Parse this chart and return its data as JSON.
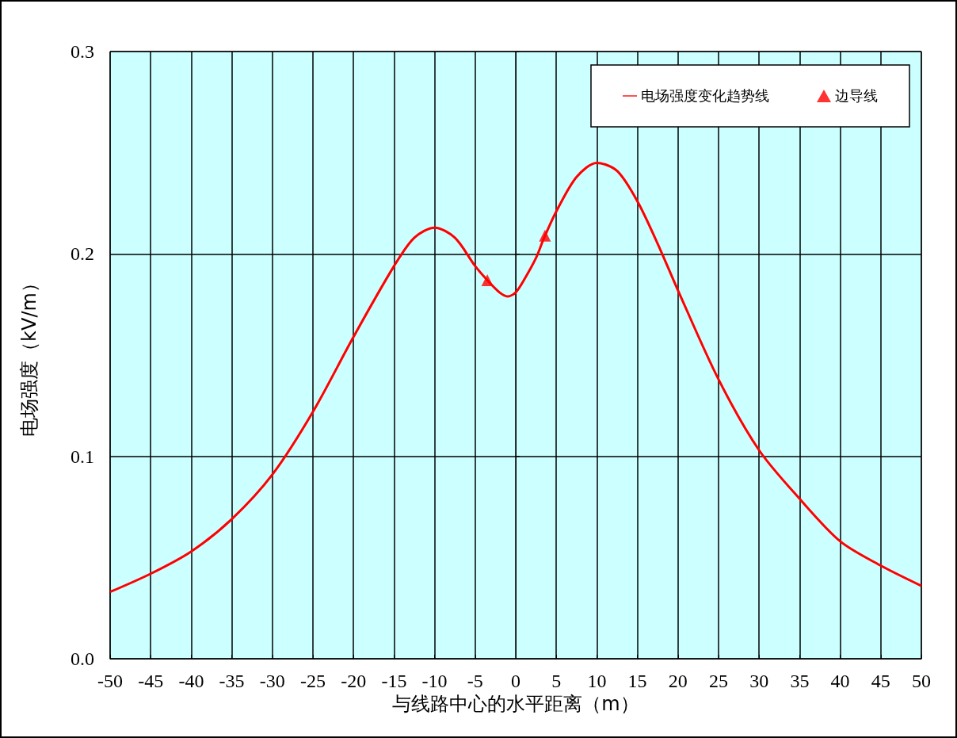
{
  "chart_data": {
    "type": "line",
    "xlabel": "与线路中心的水平距离（m）",
    "ylabel": "电场强度（kV/m）",
    "xlim": [
      -50,
      50
    ],
    "xticks": [
      -50,
      -45,
      -40,
      -35,
      -30,
      -25,
      -20,
      -15,
      -10,
      -5,
      0,
      5,
      10,
      15,
      20,
      25,
      30,
      35,
      40,
      45,
      50
    ],
    "ylim": [
      0,
      0.3
    ],
    "yticks": [
      {
        "value": 0,
        "label": "0.0"
      },
      {
        "value": 0.1,
        "label": "0.1"
      },
      {
        "value": 0.2,
        "label": "0.2"
      },
      {
        "value": 0.3,
        "label": "0.3"
      }
    ],
    "grid": true,
    "legend": "top right",
    "series": [
      {
        "name": "电场强度变化趋势线",
        "color": "#ff0000",
        "marker": "none",
        "line_style": "solid",
        "x": [
          -50,
          -45,
          -40,
          -35,
          -30,
          -25,
          -20,
          -15,
          -12.5,
          -10,
          -7.5,
          -5,
          -3.5,
          -2,
          -1,
          0,
          1,
          2.5,
          3.5,
          5,
          7.5,
          10,
          12.5,
          15,
          17.5,
          20,
          25,
          30,
          35,
          40,
          45,
          50
        ],
        "values": [
          0.033,
          0.042,
          0.053,
          0.069,
          0.091,
          0.122,
          0.159,
          0.194,
          0.208,
          0.213,
          0.208,
          0.194,
          0.187,
          0.181,
          0.179,
          0.181,
          0.187,
          0.198,
          0.208,
          0.221,
          0.238,
          0.245,
          0.241,
          0.226,
          0.205,
          0.182,
          0.138,
          0.103,
          0.079,
          0.058,
          0.046,
          0.036
        ]
      },
      {
        "name": "边导线",
        "type": "scatter",
        "color": "#ff0000",
        "marker": "triangle",
        "x": [
          -3.5,
          3.6
        ],
        "values": [
          0.187,
          0.209
        ]
      }
    ]
  }
}
